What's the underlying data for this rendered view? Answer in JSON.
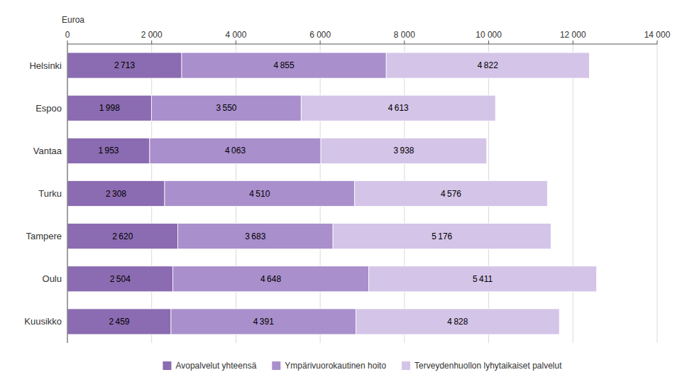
{
  "chart_data": {
    "type": "bar",
    "orientation": "horizontal",
    "stacked": true,
    "data_labels": true,
    "grid": true,
    "legend": "bottom",
    "xlabel": "Euroa",
    "categories": [
      "Helsinki",
      "Espoo",
      "Vantaa",
      "Turku",
      "Tampere",
      "Oulu",
      "Kuusikko"
    ],
    "series": [
      {
        "name": "Avopalvelut yhteensä",
        "color": "#8B6BB1",
        "values": [
          2713,
          1998,
          1953,
          2308,
          2620,
          2504,
          2459
        ],
        "value_labels": [
          "2 713",
          "1 998",
          "1 953",
          "2 308",
          "2 620",
          "2 504",
          "2 459"
        ]
      },
      {
        "name": "Ympärivuorokautinen hoito",
        "color": "#A98FCC",
        "values": [
          4855,
          3550,
          4063,
          4510,
          3683,
          4648,
          4391
        ],
        "value_labels": [
          "4 855",
          "3 550",
          "4 063",
          "4 510",
          "3 683",
          "4 648",
          "4 391"
        ]
      },
      {
        "name": "Terveydenhuollon lyhytaikaiset palvelut",
        "color": "#D4C4E8",
        "values": [
          4822,
          4613,
          3938,
          4576,
          5176,
          5411,
          4828
        ],
        "value_labels": [
          "4 822",
          "4 613",
          "3 938",
          "4 576",
          "5 176",
          "5 411",
          "4 828"
        ]
      }
    ],
    "xlim": [
      0,
      14000
    ],
    "xticks": [
      0,
      {
        "value": 2000,
        "label": "2 000"
      },
      {
        "value": 4000,
        "label": "4 000"
      },
      {
        "value": 6000,
        "label": "6 000"
      },
      {
        "value": 8000,
        "label": "8 000"
      },
      {
        "value": 10000,
        "label": "10 000"
      },
      {
        "value": 12000,
        "label": "12 000"
      },
      {
        "value": 14000,
        "label": "14 000"
      }
    ]
  }
}
